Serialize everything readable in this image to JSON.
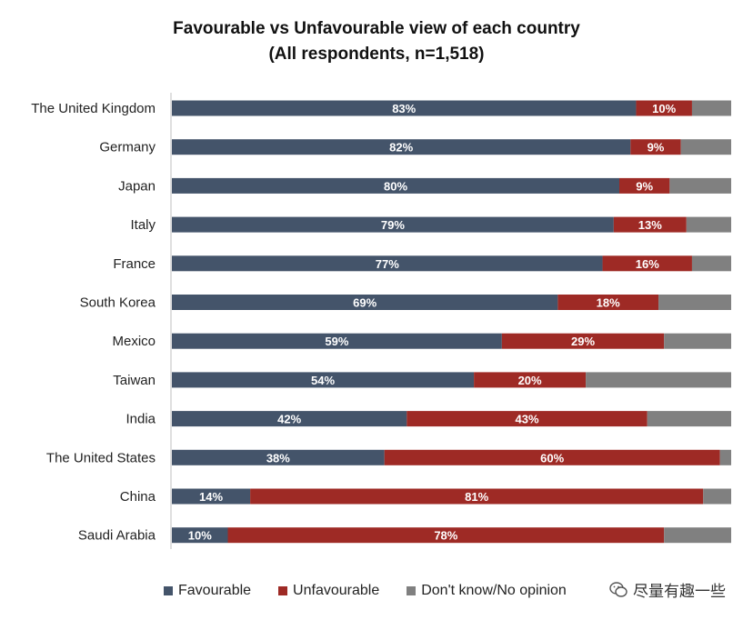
{
  "chart_data": {
    "type": "bar",
    "orientation": "horizontal",
    "stacked": true,
    "title": "Favourable vs Unfavourable view of each country",
    "subtitle": "(All respondents, n=1,518)",
    "categories": [
      "The United Kingdom",
      "Germany",
      "Japan",
      "Italy",
      "France",
      "South Korea",
      "Mexico",
      "Taiwan",
      "India",
      "The United States",
      "China",
      "Saudi Arabia"
    ],
    "series": [
      {
        "name": "Favourable",
        "color": "#44546a",
        "values": [
          83,
          82,
          80,
          79,
          77,
          69,
          59,
          54,
          42,
          38,
          14,
          10
        ]
      },
      {
        "name": "Unfavourable",
        "color": "#9e2a25",
        "values": [
          10,
          9,
          9,
          13,
          16,
          18,
          29,
          20,
          43,
          60,
          81,
          78
        ]
      },
      {
        "name": "Don't know/No opinion",
        "color": "#808080",
        "values": [
          7,
          9,
          11,
          8,
          7,
          13,
          12,
          26,
          15,
          2,
          5,
          12
        ]
      }
    ],
    "value_labels": [
      [
        "83%",
        "10%"
      ],
      [
        "82%",
        "9%"
      ],
      [
        "80%",
        "9%"
      ],
      [
        "79%",
        "13%"
      ],
      [
        "77%",
        "16%"
      ],
      [
        "69%",
        "18%"
      ],
      [
        "59%",
        "29%"
      ],
      [
        "54%",
        "20%"
      ],
      [
        "42%",
        "43%"
      ],
      [
        "38%",
        "60%"
      ],
      [
        "14%",
        "81%"
      ],
      [
        "10%",
        "78%"
      ]
    ],
    "xlim": [
      0,
      100
    ],
    "legend_position": "bottom"
  },
  "legend": {
    "favourable": "Favourable",
    "unfavourable": "Unfavourable",
    "dont_know": "Don't know/No opinion"
  },
  "watermark": {
    "text": "尽量有趣一些"
  }
}
